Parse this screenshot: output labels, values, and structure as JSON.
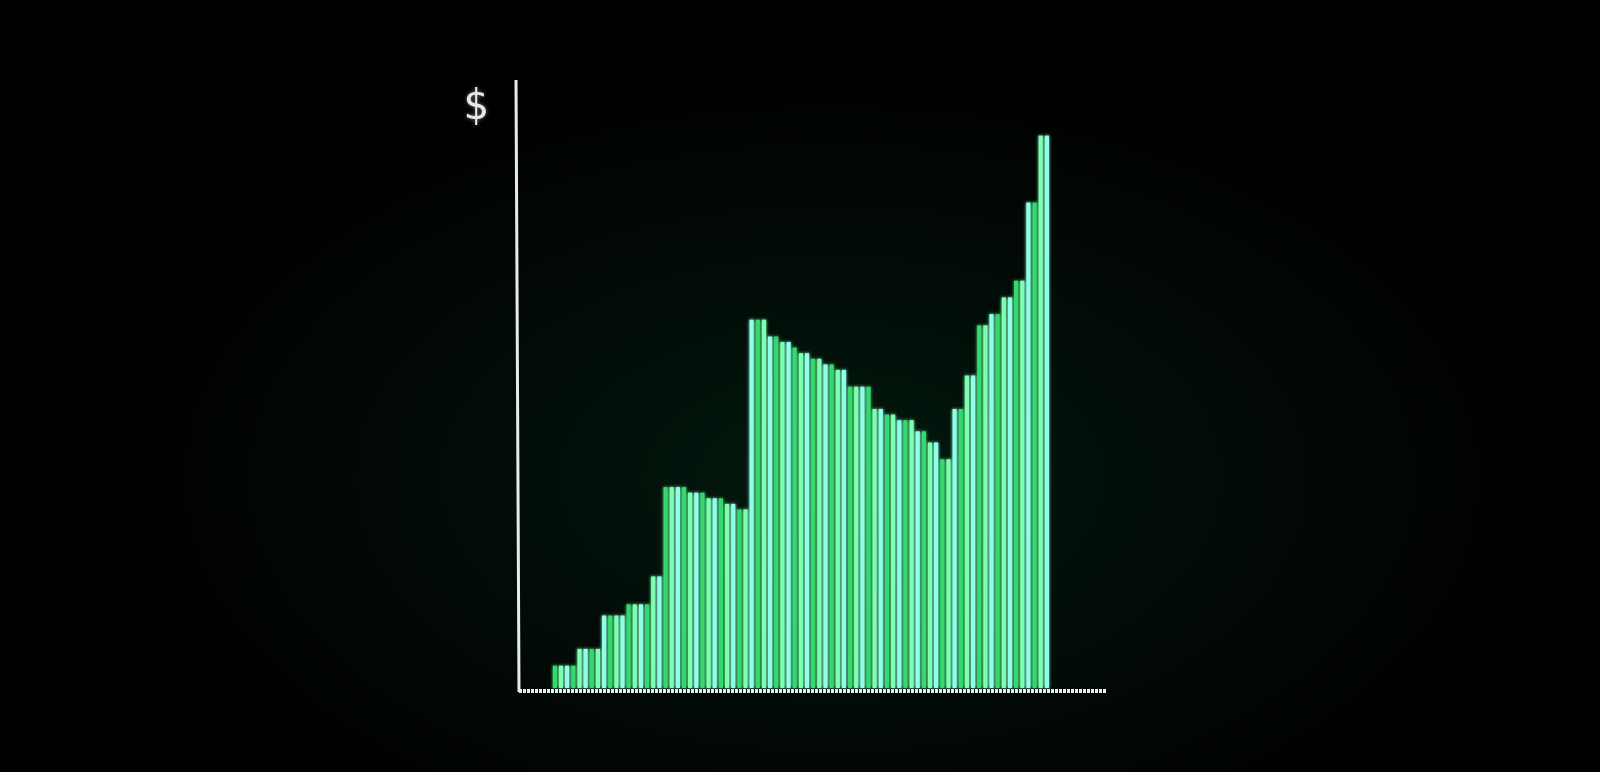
{
  "chart_data": {
    "type": "bar",
    "ylabel": "$",
    "title": "",
    "xlabel": "",
    "ylim": [
      0,
      100
    ],
    "values": [
      0,
      0,
      0,
      0,
      0,
      4,
      4,
      4,
      4,
      7,
      7,
      7,
      7,
      13,
      13,
      13,
      13,
      15,
      15,
      15,
      15,
      20,
      20,
      36,
      36,
      36,
      36,
      35,
      35,
      35,
      34,
      34,
      34,
      33,
      33,
      32,
      32,
      66,
      66,
      66,
      63,
      63,
      62,
      62,
      61,
      60,
      60,
      59,
      59,
      58,
      58,
      57,
      57,
      54,
      54,
      54,
      54,
      50,
      50,
      49,
      49,
      48,
      48,
      48,
      46,
      46,
      44,
      44,
      41,
      41,
      50,
      50,
      56,
      56,
      65,
      65,
      67,
      67,
      70,
      70,
      73,
      73,
      87,
      87,
      99,
      99
    ],
    "colors": {
      "bar_bright": "#7dffb2",
      "bar_mid": "#34d86c",
      "bar_cyan": "#8fffe6",
      "axis": "#e8eaee",
      "background": "#000000"
    }
  }
}
